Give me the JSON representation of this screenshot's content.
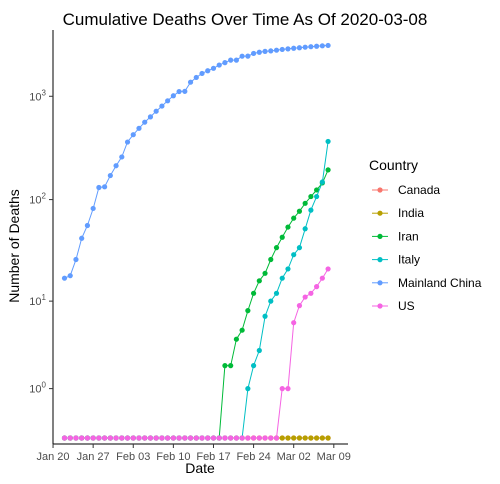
{
  "chart_data": {
    "type": "line",
    "title": "Cumulative Deaths Over Time As Of  2020-03-08",
    "xlabel": "Date",
    "ylabel": "Number of Deaths",
    "y_scale": "log10(y+0.5)",
    "y_ticks": [
      {
        "value": 1,
        "base": "10",
        "exp": "0"
      },
      {
        "value": 10,
        "base": "10",
        "exp": "1"
      },
      {
        "value": 100,
        "base": "10",
        "exp": "2"
      },
      {
        "value": 1000,
        "base": "10",
        "exp": "3"
      }
    ],
    "x_ticks": [
      {
        "date": "2020-01-20",
        "label": "Jan 20"
      },
      {
        "date": "2020-01-27",
        "label": "Jan 27"
      },
      {
        "date": "2020-02-03",
        "label": "Feb 03"
      },
      {
        "date": "2020-02-10",
        "label": "Feb 10"
      },
      {
        "date": "2020-02-17",
        "label": "Feb 17"
      },
      {
        "date": "2020-02-24",
        "label": "Feb 24"
      },
      {
        "date": "2020-03-02",
        "label": "Mar 02"
      },
      {
        "date": "2020-03-09",
        "label": "Mar 09"
      }
    ],
    "x_range": [
      "2020-01-22",
      "2020-03-08"
    ],
    "ylim": [
      0,
      3200
    ],
    "grid": false,
    "legend": {
      "title": "Country",
      "position": "right"
    },
    "series": [
      {
        "name": "Canada",
        "color": "#F8766D",
        "values": [
          0,
          0,
          0,
          0,
          0,
          0,
          0,
          0,
          0,
          0,
          0,
          0,
          0,
          0,
          0,
          0,
          0,
          0,
          0,
          0,
          0,
          0,
          0,
          0,
          0,
          0,
          0,
          0,
          0,
          0,
          0,
          0,
          0,
          0,
          0,
          0,
          0,
          0,
          0,
          0,
          0,
          0,
          0,
          0,
          0,
          0,
          0
        ]
      },
      {
        "name": "India",
        "color": "#B79F00",
        "values": [
          0,
          0,
          0,
          0,
          0,
          0,
          0,
          0,
          0,
          0,
          0,
          0,
          0,
          0,
          0,
          0,
          0,
          0,
          0,
          0,
          0,
          0,
          0,
          0,
          0,
          0,
          0,
          0,
          0,
          0,
          0,
          0,
          0,
          0,
          0,
          0,
          0,
          0,
          0,
          0,
          0,
          0,
          0,
          0,
          0,
          0,
          0
        ]
      },
      {
        "name": "Iran",
        "color": "#00BA38",
        "values": [
          0,
          0,
          0,
          0,
          0,
          0,
          0,
          0,
          0,
          0,
          0,
          0,
          0,
          0,
          0,
          0,
          0,
          0,
          0,
          0,
          0,
          0,
          0,
          0,
          0,
          0,
          0,
          0,
          2,
          2,
          4,
          5,
          8,
          12,
          16,
          19,
          26,
          34,
          43,
          54,
          66,
          77,
          92,
          107,
          124,
          145,
          194
        ]
      },
      {
        "name": "Italy",
        "color": "#00BFC4",
        "values": [
          0,
          0,
          0,
          0,
          0,
          0,
          0,
          0,
          0,
          0,
          0,
          0,
          0,
          0,
          0,
          0,
          0,
          0,
          0,
          0,
          0,
          0,
          0,
          0,
          0,
          0,
          0,
          0,
          0,
          0,
          0,
          0,
          1,
          2,
          3,
          7,
          10,
          12,
          17,
          21,
          29,
          34,
          52,
          79,
          107,
          148,
          366
        ]
      },
      {
        "name": "Mainland China",
        "color": "#619CFF",
        "values": [
          17,
          18,
          26,
          42,
          56,
          82,
          131,
          133,
          171,
          213,
          259,
          361,
          425,
          490,
          562,
          632,
          717,
          804,
          904,
          1011,
          1111,
          1116,
          1368,
          1520,
          1662,
          1765,
          1863,
          2002,
          2114,
          2236,
          2236,
          2441,
          2443,
          2593,
          2663,
          2715,
          2744,
          2788,
          2835,
          2870,
          2912,
          2943,
          2981,
          3013,
          3045,
          3073,
          3099
        ]
      },
      {
        "name": "US",
        "color": "#F564E3",
        "values": [
          0,
          0,
          0,
          0,
          0,
          0,
          0,
          0,
          0,
          0,
          0,
          0,
          0,
          0,
          0,
          0,
          0,
          0,
          0,
          0,
          0,
          0,
          0,
          0,
          0,
          0,
          0,
          0,
          0,
          0,
          0,
          0,
          0,
          0,
          0,
          0,
          0,
          0,
          1,
          1,
          6,
          9,
          11,
          12,
          14,
          17,
          21
        ]
      }
    ]
  }
}
